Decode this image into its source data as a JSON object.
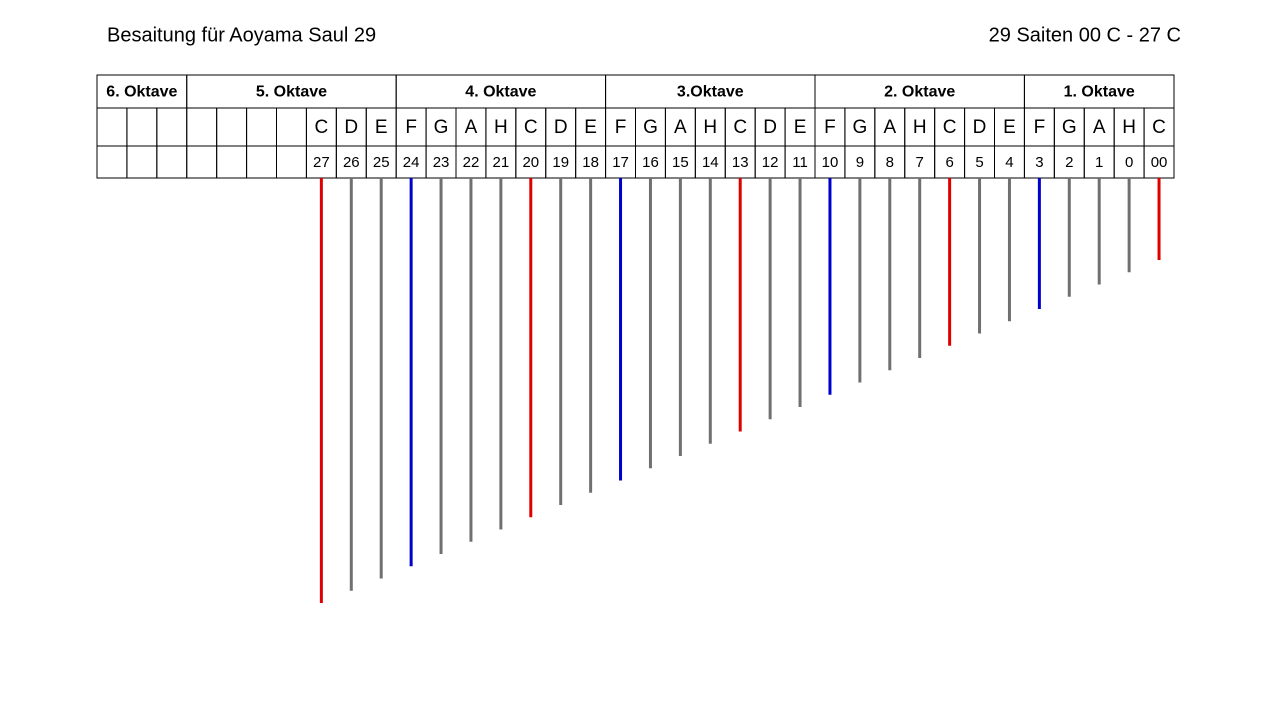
{
  "header": {
    "title": "Besaitung für Aoyama Saul 29",
    "subtitle": "29 Saiten 00 C - 27 C"
  },
  "octaves": [
    {
      "label": "6. Oktave",
      "strings": [
        null,
        null,
        null
      ]
    },
    {
      "label": "5. Oktave",
      "strings": [
        null,
        null,
        null,
        null,
        {
          "note": "C",
          "number": "27"
        },
        {
          "note": "D",
          "number": "26"
        },
        {
          "note": "E",
          "number": "25"
        }
      ]
    },
    {
      "label": "4. Oktave",
      "strings": [
        {
          "note": "F",
          "number": "24"
        },
        {
          "note": "G",
          "number": "23"
        },
        {
          "note": "A",
          "number": "22"
        },
        {
          "note": "H",
          "number": "21"
        },
        {
          "note": "C",
          "number": "20"
        },
        {
          "note": "D",
          "number": "19"
        },
        {
          "note": "E",
          "number": "18"
        }
      ]
    },
    {
      "label": "3.Oktave",
      "strings": [
        {
          "note": "F",
          "number": "17"
        },
        {
          "note": "G",
          "number": "16"
        },
        {
          "note": "A",
          "number": "15"
        },
        {
          "note": "H",
          "number": "14"
        },
        {
          "note": "C",
          "number": "13"
        },
        {
          "note": "D",
          "number": "12"
        },
        {
          "note": "E",
          "number": "11"
        }
      ]
    },
    {
      "label": "2. Oktave",
      "strings": [
        {
          "note": "F",
          "number": "10"
        },
        {
          "note": "G",
          "number": "9"
        },
        {
          "note": "A",
          "number": "8"
        },
        {
          "note": "H",
          "number": "7"
        },
        {
          "note": "C",
          "number": "6"
        },
        {
          "note": "D",
          "number": "5"
        },
        {
          "note": "E",
          "number": "4"
        }
      ]
    },
    {
      "label": "1. Oktave",
      "strings": [
        {
          "note": "F",
          "number": "3"
        },
        {
          "note": "G",
          "number": "2"
        },
        {
          "note": "A",
          "number": "1"
        },
        {
          "note": "H",
          "number": "0"
        },
        {
          "note": "C",
          "number": "00"
        }
      ]
    }
  ]
}
